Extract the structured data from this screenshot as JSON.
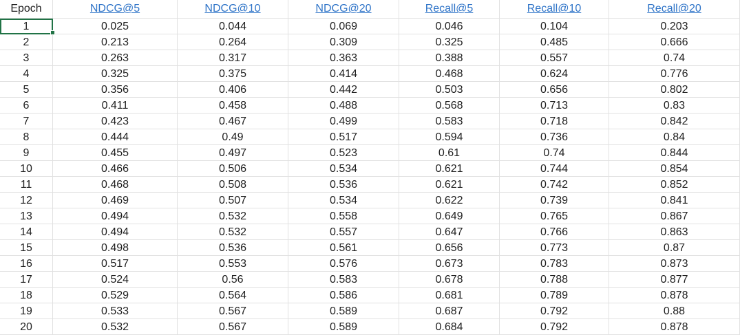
{
  "sheet": {
    "headers": [
      "Epoch",
      "NDCG@5",
      "NDCG@10",
      "NDCG@20",
      "Recall@5",
      "Recall@10",
      "Recall@20"
    ],
    "rows": [
      [
        "1",
        "0.025",
        "0.044",
        "0.069",
        "0.046",
        "0.104",
        "0.203"
      ],
      [
        "2",
        "0.213",
        "0.264",
        "0.309",
        "0.325",
        "0.485",
        "0.666"
      ],
      [
        "3",
        "0.263",
        "0.317",
        "0.363",
        "0.388",
        "0.557",
        "0.74"
      ],
      [
        "4",
        "0.325",
        "0.375",
        "0.414",
        "0.468",
        "0.624",
        "0.776"
      ],
      [
        "5",
        "0.356",
        "0.406",
        "0.442",
        "0.503",
        "0.656",
        "0.802"
      ],
      [
        "6",
        "0.411",
        "0.458",
        "0.488",
        "0.568",
        "0.713",
        "0.83"
      ],
      [
        "7",
        "0.423",
        "0.467",
        "0.499",
        "0.583",
        "0.718",
        "0.842"
      ],
      [
        "8",
        "0.444",
        "0.49",
        "0.517",
        "0.594",
        "0.736",
        "0.84"
      ],
      [
        "9",
        "0.455",
        "0.497",
        "0.523",
        "0.61",
        "0.74",
        "0.844"
      ],
      [
        "10",
        "0.466",
        "0.506",
        "0.534",
        "0.621",
        "0.744",
        "0.854"
      ],
      [
        "11",
        "0.468",
        "0.508",
        "0.536",
        "0.621",
        "0.742",
        "0.852"
      ],
      [
        "12",
        "0.469",
        "0.507",
        "0.534",
        "0.622",
        "0.739",
        "0.841"
      ],
      [
        "13",
        "0.494",
        "0.532",
        "0.558",
        "0.649",
        "0.765",
        "0.867"
      ],
      [
        "14",
        "0.494",
        "0.532",
        "0.557",
        "0.647",
        "0.766",
        "0.863"
      ],
      [
        "15",
        "0.498",
        "0.536",
        "0.561",
        "0.656",
        "0.773",
        "0.87"
      ],
      [
        "16",
        "0.517",
        "0.553",
        "0.576",
        "0.673",
        "0.783",
        "0.873"
      ],
      [
        "17",
        "0.524",
        "0.56",
        "0.583",
        "0.678",
        "0.788",
        "0.877"
      ],
      [
        "18",
        "0.529",
        "0.564",
        "0.586",
        "0.681",
        "0.789",
        "0.878"
      ],
      [
        "19",
        "0.533",
        "0.567",
        "0.589",
        "0.687",
        "0.792",
        "0.88"
      ],
      [
        "20",
        "0.532",
        "0.567",
        "0.589",
        "0.684",
        "0.792",
        "0.878"
      ]
    ]
  },
  "colors": {
    "link": "#2f74c8",
    "selection": "#217346",
    "gridline": "#e1e1e1",
    "text": "#1f1f1f"
  }
}
